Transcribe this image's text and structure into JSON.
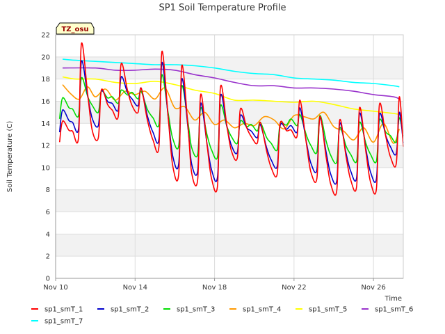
{
  "chart_data": {
    "type": "line",
    "title": "SP1 Soil Temperature Profile",
    "xlabel": "Time",
    "ylabel": "Soil Temperature (C)",
    "annotation": "TZ_osu",
    "ylim": [
      0,
      22
    ],
    "yticks": [
      0,
      2,
      4,
      6,
      8,
      10,
      12,
      14,
      16,
      18,
      20,
      22
    ],
    "xlim": [
      0,
      17.5
    ],
    "xticks": [
      {
        "value": 0,
        "label": "Nov 10"
      },
      {
        "value": 4,
        "label": "Nov 14"
      },
      {
        "value": 8,
        "label": "Nov 18"
      },
      {
        "value": 12,
        "label": "Nov 22"
      },
      {
        "value": 16,
        "label": "Nov 26"
      }
    ],
    "grid": true,
    "legend_position": "bottom",
    "series": [
      {
        "name": "sp1_smT_1",
        "color": "#ff0000",
        "style": "diurnal",
        "anchors": [
          [
            0.35,
            14.2,
            12.3
          ],
          [
            1.3,
            21.2,
            12.7
          ],
          [
            2.3,
            17.0,
            12.7
          ],
          [
            3.3,
            19.4,
            14.6
          ],
          [
            4.3,
            17.2,
            15.0
          ],
          [
            5.35,
            20.5,
            11.9
          ],
          [
            6.35,
            19.2,
            9.5
          ],
          [
            7.3,
            16.6,
            8.9
          ],
          [
            8.3,
            17.3,
            8.4
          ],
          [
            9.3,
            15.3,
            10.9
          ],
          [
            10.3,
            14.1,
            12.2
          ],
          [
            11.3,
            14.0,
            9.4
          ],
          [
            12.3,
            16.1,
            12.8
          ],
          [
            13.3,
            14.6,
            9.0
          ],
          [
            14.3,
            14.3,
            7.9
          ],
          [
            15.3,
            15.4,
            8.3
          ],
          [
            16.3,
            15.7,
            8.1
          ],
          [
            17.3,
            16.4,
            10.4
          ]
        ]
      },
      {
        "name": "sp1_smT_2",
        "color": "#0000cc",
        "style": "diurnal",
        "anchors": [
          [
            0.35,
            15.2,
            13.2
          ],
          [
            1.3,
            19.6,
            13.5
          ],
          [
            2.3,
            16.9,
            13.8
          ],
          [
            3.3,
            18.2,
            15.2
          ],
          [
            4.3,
            17.2,
            15.6
          ],
          [
            5.35,
            19.5,
            12.6
          ],
          [
            6.35,
            18.0,
            10.4
          ],
          [
            7.3,
            15.8,
            9.7
          ],
          [
            8.3,
            16.5,
            9.2
          ],
          [
            9.3,
            14.7,
            11.4
          ],
          [
            10.3,
            13.9,
            12.7
          ],
          [
            11.3,
            13.8,
            10.1
          ],
          [
            12.3,
            15.4,
            13.2
          ],
          [
            13.3,
            14.5,
            9.8
          ],
          [
            14.3,
            14.0,
            8.8
          ],
          [
            15.3,
            14.9,
            9.1
          ],
          [
            16.3,
            14.8,
            9.0
          ],
          [
            17.3,
            15.0,
            11.3
          ]
        ]
      },
      {
        "name": "sp1_smT_3",
        "color": "#00dd00",
        "style": "diurnal",
        "anchors": [
          [
            0.35,
            16.3,
            14.4
          ],
          [
            1.3,
            18.1,
            14.7
          ],
          [
            2.3,
            16.9,
            15.0
          ],
          [
            3.3,
            17.0,
            15.8
          ],
          [
            4.3,
            16.9,
            16.2
          ],
          [
            5.35,
            18.4,
            13.9
          ],
          [
            6.35,
            17.4,
            12.0
          ],
          [
            7.3,
            15.4,
            11.2
          ],
          [
            8.3,
            15.6,
            11.0
          ],
          [
            9.3,
            14.2,
            12.2
          ],
          [
            10.3,
            14.1,
            13.3
          ],
          [
            11.3,
            13.9,
            11.6
          ],
          [
            12.3,
            14.8,
            13.8
          ],
          [
            13.3,
            14.7,
            11.4
          ],
          [
            14.3,
            13.6,
            10.5
          ],
          [
            15.3,
            14.1,
            10.6
          ],
          [
            16.3,
            14.3,
            10.6
          ],
          [
            17.3,
            14.5,
            12.3
          ]
        ]
      },
      {
        "name": "sp1_smT_4",
        "color": "#ff9900",
        "style": "smooth",
        "anchors": [
          [
            0.35,
            17.5
          ],
          [
            0.8,
            16.6
          ],
          [
            1.2,
            16.2
          ],
          [
            1.6,
            17.3
          ],
          [
            2.0,
            16.4
          ],
          [
            2.5,
            17.1
          ],
          [
            3.0,
            16.1
          ],
          [
            3.5,
            16.9
          ],
          [
            4.0,
            16.6
          ],
          [
            4.5,
            16.9
          ],
          [
            5.0,
            16.2
          ],
          [
            5.5,
            17.2
          ],
          [
            6.0,
            15.4
          ],
          [
            6.5,
            15.5
          ],
          [
            7.0,
            14.3
          ],
          [
            7.5,
            15.0
          ],
          [
            8.0,
            13.9
          ],
          [
            8.5,
            14.3
          ],
          [
            9.0,
            13.6
          ],
          [
            9.5,
            14.0
          ],
          [
            10.0,
            13.8
          ],
          [
            10.5,
            14.6
          ],
          [
            11.0,
            14.3
          ],
          [
            11.5,
            13.5
          ],
          [
            12.0,
            14.7
          ],
          [
            12.5,
            14.6
          ],
          [
            13.0,
            14.4
          ],
          [
            13.5,
            15.0
          ],
          [
            14.0,
            13.7
          ],
          [
            14.5,
            13.3
          ],
          [
            15.0,
            12.5
          ],
          [
            15.5,
            13.6
          ],
          [
            16.0,
            12.3
          ],
          [
            16.5,
            14.0
          ],
          [
            17.0,
            12.2
          ],
          [
            17.3,
            13.5
          ]
        ]
      },
      {
        "name": "sp1_smT_5",
        "color": "#ffff00",
        "style": "smooth",
        "anchors": [
          [
            0.35,
            18.2
          ],
          [
            1.0,
            18.0
          ],
          [
            2.0,
            18.0
          ],
          [
            3.0,
            17.7
          ],
          [
            4.0,
            17.6
          ],
          [
            5.0,
            17.8
          ],
          [
            6.0,
            17.5
          ],
          [
            7.0,
            17.0
          ],
          [
            8.0,
            16.7
          ],
          [
            9.0,
            16.1
          ],
          [
            10.0,
            16.1
          ],
          [
            11.0,
            16.0
          ],
          [
            12.0,
            15.9
          ],
          [
            13.0,
            16.0
          ],
          [
            14.0,
            15.7
          ],
          [
            15.0,
            15.3
          ],
          [
            16.0,
            15.1
          ],
          [
            17.0,
            14.9
          ],
          [
            17.3,
            14.8
          ]
        ]
      },
      {
        "name": "sp1_smT_6",
        "color": "#9933cc",
        "style": "smooth",
        "anchors": [
          [
            0.35,
            19.0
          ],
          [
            2.0,
            19.0
          ],
          [
            3.0,
            18.8
          ],
          [
            4.0,
            18.8
          ],
          [
            5.0,
            18.9
          ],
          [
            6.0,
            18.8
          ],
          [
            7.0,
            18.4
          ],
          [
            8.0,
            18.1
          ],
          [
            9.0,
            17.7
          ],
          [
            10.0,
            17.4
          ],
          [
            11.0,
            17.4
          ],
          [
            12.0,
            17.2
          ],
          [
            13.0,
            17.2
          ],
          [
            14.0,
            17.1
          ],
          [
            15.0,
            16.9
          ],
          [
            16.0,
            16.6
          ],
          [
            17.0,
            16.4
          ],
          [
            17.3,
            16.2
          ]
        ]
      },
      {
        "name": "sp1_smT_7",
        "color": "#00ffff",
        "style": "smooth",
        "anchors": [
          [
            0.35,
            19.8
          ],
          [
            1.0,
            19.7
          ],
          [
            2.0,
            19.6
          ],
          [
            3.0,
            19.5
          ],
          [
            4.0,
            19.4
          ],
          [
            5.0,
            19.3
          ],
          [
            6.0,
            19.3
          ],
          [
            7.0,
            19.2
          ],
          [
            8.0,
            19.0
          ],
          [
            9.0,
            18.7
          ],
          [
            10.0,
            18.5
          ],
          [
            11.0,
            18.4
          ],
          [
            12.0,
            18.1
          ],
          [
            13.0,
            18.0
          ],
          [
            14.0,
            17.9
          ],
          [
            15.0,
            17.7
          ],
          [
            16.0,
            17.6
          ],
          [
            17.0,
            17.4
          ],
          [
            17.3,
            17.3
          ]
        ]
      }
    ]
  }
}
